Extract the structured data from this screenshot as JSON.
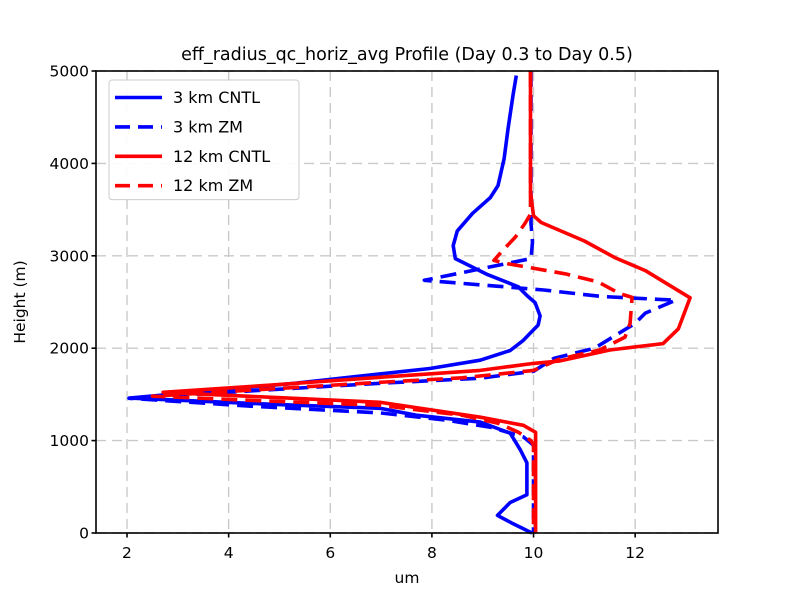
{
  "chart_data": {
    "type": "line",
    "title": "eff_radius_qc_horiz_avg Profile (Day 0.3 to Day 0.5)",
    "xlabel": "um",
    "ylabel": "Height (m)",
    "xlim": [
      1.39,
      13.63
    ],
    "ylim": [
      0,
      5000
    ],
    "xticks": [
      2,
      4,
      6,
      8,
      10,
      12
    ],
    "yticks": [
      0,
      1000,
      2000,
      3000,
      4000,
      5000
    ],
    "grid": {
      "on": true,
      "color": "#c9c9c9",
      "dash": "10 6",
      "width": 1.4
    },
    "axis_color": "#000000",
    "legend": {
      "position": "upper left"
    },
    "series": [
      {
        "name": "3 km CNTL",
        "color": "#0000ff",
        "style": "solid",
        "points": [
          [
            9.66,
            4950
          ],
          [
            9.6,
            4750
          ],
          [
            9.5,
            4380
          ],
          [
            9.42,
            4050
          ],
          [
            9.3,
            3760
          ],
          [
            9.15,
            3630
          ],
          [
            8.8,
            3460
          ],
          [
            8.5,
            3270
          ],
          [
            8.42,
            3110
          ],
          [
            8.46,
            2970
          ],
          [
            9.1,
            2795
          ],
          [
            9.7,
            2665
          ],
          [
            9.87,
            2570
          ],
          [
            10.03,
            2494
          ],
          [
            10.13,
            2350
          ],
          [
            10.09,
            2250
          ],
          [
            9.93,
            2160
          ],
          [
            9.8,
            2085
          ],
          [
            9.54,
            1975
          ],
          [
            8.95,
            1870
          ],
          [
            7.96,
            1780
          ],
          [
            5.3,
            1620
          ],
          [
            2.05,
            1460
          ],
          [
            5.0,
            1390
          ],
          [
            6.98,
            1350
          ],
          [
            7.69,
            1275
          ],
          [
            8.95,
            1200
          ],
          [
            9.54,
            1080
          ],
          [
            9.74,
            900
          ],
          [
            9.87,
            760
          ],
          [
            9.87,
            415
          ],
          [
            9.54,
            330
          ],
          [
            9.29,
            190
          ],
          [
            9.6,
            100
          ],
          [
            9.97,
            0
          ]
        ]
      },
      {
        "name": "3 km ZM",
        "color": "#0000ff",
        "style": "dashed",
        "points": [
          [
            9.95,
            5000
          ],
          [
            9.95,
            3350
          ],
          [
            9.98,
            3150
          ],
          [
            9.95,
            2970
          ],
          [
            7.85,
            2735
          ],
          [
            10.2,
            2630
          ],
          [
            10.85,
            2590
          ],
          [
            11.35,
            2560
          ],
          [
            12.8,
            2520
          ],
          [
            12.2,
            2380
          ],
          [
            12.0,
            2270
          ],
          [
            11.2,
            2000
          ],
          [
            10.4,
            1890
          ],
          [
            10.0,
            1750
          ],
          [
            8.95,
            1675
          ],
          [
            6.98,
            1620
          ],
          [
            4.5,
            1540
          ],
          [
            2.04,
            1458
          ],
          [
            4.5,
            1370
          ],
          [
            6.98,
            1300
          ],
          [
            8.3,
            1220
          ],
          [
            9.15,
            1145
          ],
          [
            9.8,
            1040
          ],
          [
            10.0,
            950
          ],
          [
            10.0,
            0
          ]
        ]
      },
      {
        "name": "12 km CNTL",
        "color": "#ff0000",
        "style": "solid",
        "points": [
          [
            9.94,
            5000
          ],
          [
            9.94,
            3700
          ],
          [
            9.97,
            3560
          ],
          [
            10.0,
            3434
          ],
          [
            10.15,
            3360
          ],
          [
            11.0,
            3160
          ],
          [
            11.6,
            2980
          ],
          [
            12.2,
            2840
          ],
          [
            13.08,
            2545
          ],
          [
            12.85,
            2210
          ],
          [
            12.55,
            2050
          ],
          [
            11.5,
            1980
          ],
          [
            10.5,
            1860
          ],
          [
            10.0,
            1835
          ],
          [
            8.95,
            1760
          ],
          [
            6.98,
            1685
          ],
          [
            4.8,
            1600
          ],
          [
            2.71,
            1523
          ],
          [
            4.8,
            1470
          ],
          [
            6.98,
            1415
          ],
          [
            8.95,
            1253
          ],
          [
            9.8,
            1166
          ],
          [
            10.04,
            1090
          ],
          [
            10.04,
            0
          ]
        ]
      },
      {
        "name": "12 km ZM",
        "color": "#ff0000",
        "style": "dashed",
        "points": [
          [
            9.94,
            5000
          ],
          [
            9.94,
            3450
          ],
          [
            9.83,
            3350
          ],
          [
            9.64,
            3200
          ],
          [
            9.38,
            3050
          ],
          [
            9.22,
            2950
          ],
          [
            9.5,
            2913
          ],
          [
            10.62,
            2805
          ],
          [
            11.27,
            2718
          ],
          [
            11.7,
            2590
          ],
          [
            11.94,
            2550
          ],
          [
            11.9,
            2270
          ],
          [
            11.8,
            2120
          ],
          [
            11.3,
            1980
          ],
          [
            10.5,
            1880
          ],
          [
            10.0,
            1760
          ],
          [
            8.6,
            1680
          ],
          [
            6.98,
            1631
          ],
          [
            4.7,
            1555
          ],
          [
            2.5,
            1480
          ],
          [
            4.7,
            1430
          ],
          [
            6.98,
            1382
          ],
          [
            8.6,
            1274
          ],
          [
            9.3,
            1188
          ],
          [
            9.7,
            1091
          ],
          [
            9.95,
            1000
          ],
          [
            10.0,
            950
          ],
          [
            10.0,
            0
          ]
        ]
      }
    ]
  },
  "style": {
    "line_width": 3.6,
    "line_dash": "16 8",
    "legend_border": "#cccccc",
    "legend_bg": "#ffffff"
  }
}
